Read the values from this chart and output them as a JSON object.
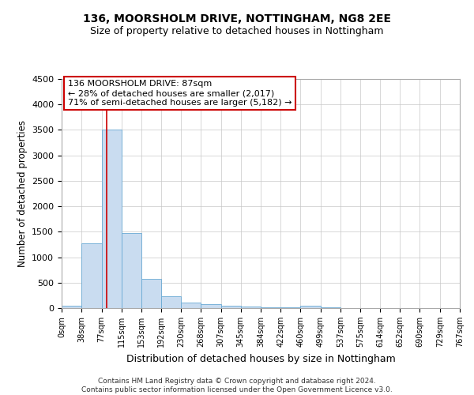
{
  "title1": "136, MOORSHOLM DRIVE, NOTTINGHAM, NG8 2EE",
  "title2": "Size of property relative to detached houses in Nottingham",
  "xlabel": "Distribution of detached houses by size in Nottingham",
  "ylabel": "Number of detached properties",
  "bar_color": "#c9dcf0",
  "bar_edge_color": "#6aaad4",
  "background_color": "#ffffff",
  "grid_color": "#c8c8c8",
  "bin_edges": [
    0,
    38,
    77,
    115,
    153,
    192,
    230,
    268,
    307,
    345,
    384,
    422,
    460,
    499,
    537,
    575,
    614,
    652,
    690,
    729,
    767
  ],
  "bin_labels": [
    "0sqm",
    "38sqm",
    "77sqm",
    "115sqm",
    "153sqm",
    "192sqm",
    "230sqm",
    "268sqm",
    "307sqm",
    "345sqm",
    "384sqm",
    "422sqm",
    "460sqm",
    "499sqm",
    "537sqm",
    "575sqm",
    "614sqm",
    "652sqm",
    "690sqm",
    "729sqm",
    "767sqm"
  ],
  "bar_heights": [
    40,
    1280,
    3500,
    1480,
    580,
    240,
    115,
    80,
    50,
    30,
    20,
    15,
    50,
    10,
    0,
    0,
    0,
    0,
    0,
    0
  ],
  "ylim": [
    0,
    4500
  ],
  "yticks": [
    0,
    500,
    1000,
    1500,
    2000,
    2500,
    3000,
    3500,
    4000,
    4500
  ],
  "property_label": "136 MOORSHOLM DRIVE: 87sqm",
  "annotation_line1": "← 28% of detached houses are smaller (2,017)",
  "annotation_line2": "71% of semi-detached houses are larger (5,182) →",
  "annotation_box_color": "#ffffff",
  "annotation_box_edge_color": "#cc0000",
  "vline_color": "#cc0000",
  "vline_x": 87,
  "footer_line1": "Contains HM Land Registry data © Crown copyright and database right 2024.",
  "footer_line2": "Contains public sector information licensed under the Open Government Licence v3.0."
}
